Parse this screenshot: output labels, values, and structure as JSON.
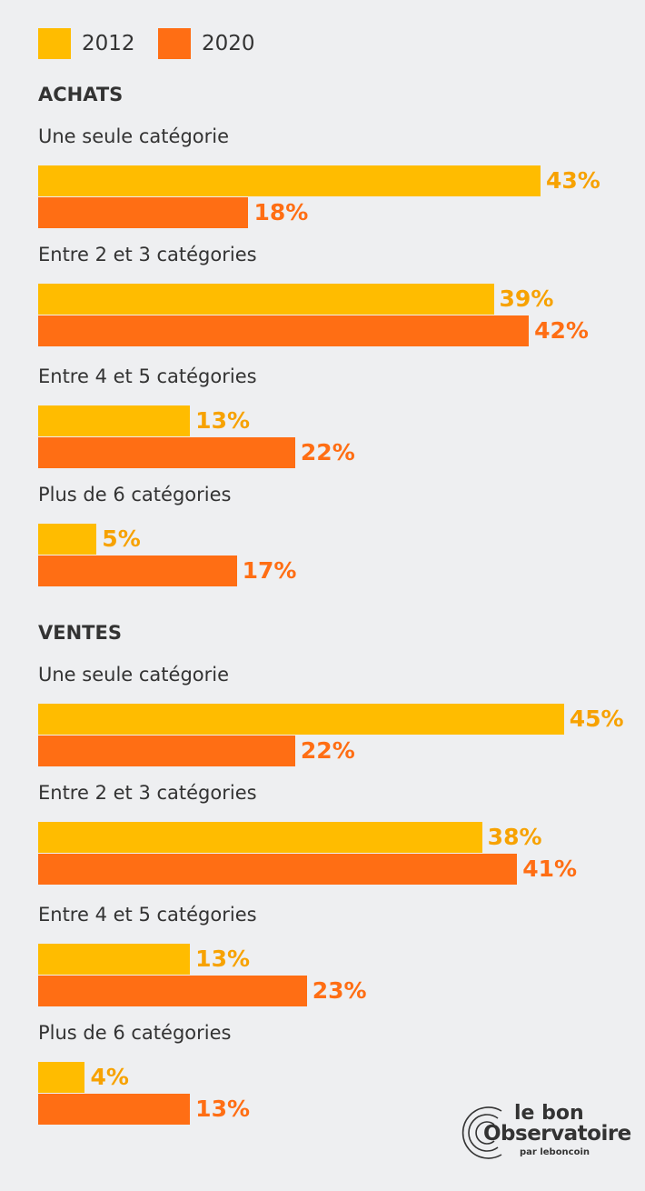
{
  "chart_data": {
    "type": "bar",
    "orientation": "horizontal",
    "legend": [
      {
        "name": "2012",
        "color": "#FFBC00"
      },
      {
        "name": "2020",
        "color": "#FF6E14"
      }
    ],
    "value_colors": {
      "2012": "#F7A200",
      "2020": "#FF6E14"
    },
    "sections": [
      {
        "title": "ACHATS",
        "categories": [
          "Une seule catégorie",
          "Entre 2 et 3 catégories",
          "Entre 4 et 5 catégories",
          "Plus de 6 catégories"
        ],
        "series": [
          {
            "name": "2012",
            "values": [
              43,
              39,
              13,
              5
            ]
          },
          {
            "name": "2020",
            "values": [
              18,
              42,
              22,
              17
            ]
          }
        ]
      },
      {
        "title": "VENTES",
        "categories": [
          "Une seule catégorie",
          "Entre 2 et 3 catégories",
          "Entre 4 et 5 catégories",
          "Plus de 6 catégories"
        ],
        "series": [
          {
            "name": "2012",
            "values": [
              45,
              38,
              13,
              4
            ]
          },
          {
            "name": "2020",
            "values": [
              22,
              41,
              23,
              13
            ]
          }
        ]
      }
    ],
    "unit": "%",
    "grid": false,
    "legend_placement": "top-left"
  },
  "logo": {
    "line1": "le bon",
    "line2": "Observatoire",
    "line3": "par leboncoin"
  }
}
